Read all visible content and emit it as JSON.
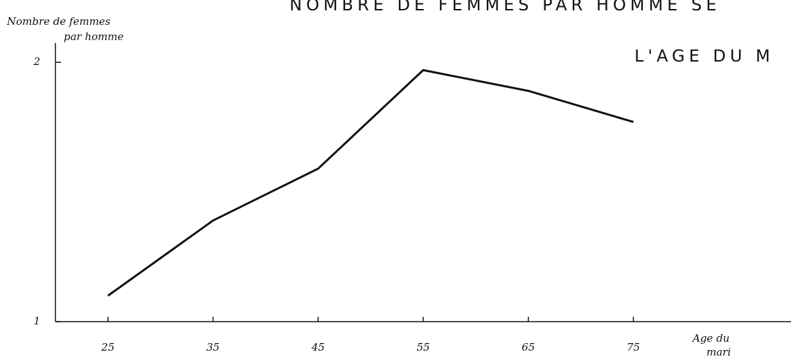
{
  "chart_data": {
    "type": "line",
    "title": "NOMBRE DE FEMMES PAR HOMME SE",
    "subtitle": "L'AGE DU M",
    "ylabel_lines": [
      "Nombre de femmes",
      "par homme"
    ],
    "xlabel_lines": [
      "Age du",
      "mari"
    ],
    "x": [
      25,
      35,
      45,
      55,
      65,
      75
    ],
    "series": [
      {
        "color": "#111111",
        "values": [
          1.1,
          1.39,
          1.59,
          1.97,
          1.89,
          1.77
        ]
      }
    ],
    "xlim": [
      20,
      90
    ],
    "xticks": [
      25,
      35,
      45,
      55,
      65,
      75
    ],
    "ylim": [
      1,
      2.075
    ],
    "yticks": [
      1,
      2
    ],
    "grid": false
  }
}
